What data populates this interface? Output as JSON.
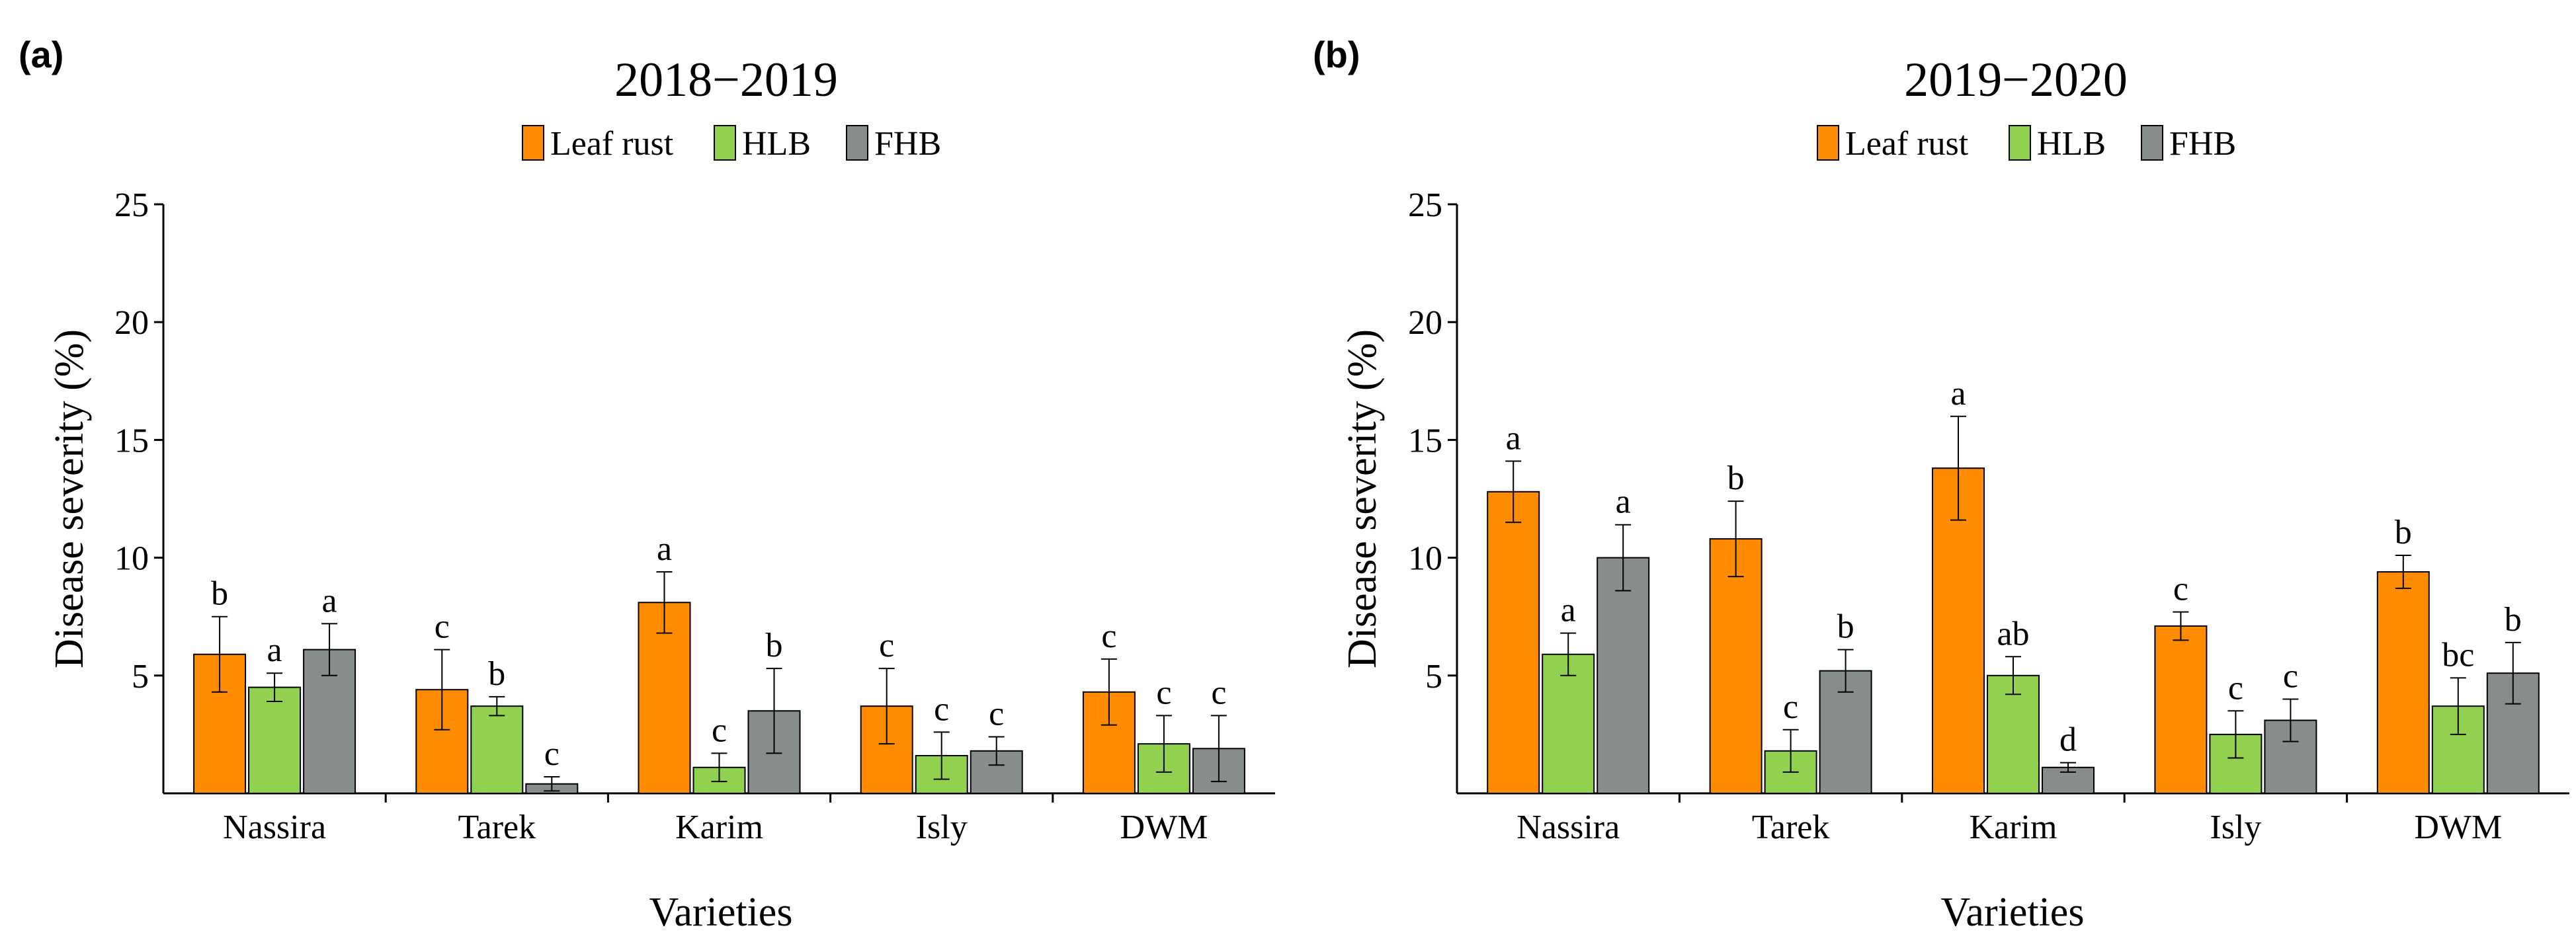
{
  "chart_data": [
    {
      "type": "bar",
      "panel_label": "(a)",
      "title": "2018−2019",
      "xlabel": "Varieties",
      "ylabel": "Disease severity (%)",
      "ylim": [
        0,
        25
      ],
      "yticks": [
        "5",
        "10",
        "15",
        "20",
        "25"
      ],
      "legend_position": "top-center",
      "categories": [
        "Nassira",
        "Tarek",
        "Karim",
        "Isly",
        "DWM"
      ],
      "series": [
        {
          "name": "Leaf rust",
          "color": "#FF8C00",
          "values": [
            5.9,
            4.4,
            8.1,
            3.7,
            4.3
          ],
          "errors": [
            1.6,
            1.7,
            1.3,
            1.6,
            1.4
          ],
          "letters": [
            "b",
            "c",
            "a",
            "c",
            "c"
          ]
        },
        {
          "name": "HLB",
          "color": "#92D050",
          "values": [
            4.5,
            3.7,
            1.1,
            1.6,
            2.1
          ],
          "errors": [
            0.6,
            0.4,
            0.6,
            1.0,
            1.2
          ],
          "letters": [
            "a",
            "b",
            "c",
            "c",
            "c"
          ]
        },
        {
          "name": "FHB",
          "color": "#878C8C",
          "values": [
            6.1,
            0.4,
            3.5,
            1.8,
            1.9
          ],
          "errors": [
            1.1,
            0.3,
            1.8,
            0.6,
            1.4
          ],
          "letters": [
            "a",
            "c",
            "b",
            "c",
            "c"
          ]
        }
      ]
    },
    {
      "type": "bar",
      "panel_label": "(b)",
      "title": "2019−2020",
      "xlabel": "Varieties",
      "ylabel": "Disease severity (%)",
      "ylim": [
        0,
        25
      ],
      "yticks": [
        "5",
        "10",
        "15",
        "20",
        "25"
      ],
      "legend_position": "top-center",
      "categories": [
        "Nassira",
        "Tarek",
        "Karim",
        "Isly",
        "DWM"
      ],
      "series": [
        {
          "name": "Leaf rust",
          "color": "#FF8C00",
          "values": [
            12.8,
            10.8,
            13.8,
            7.1,
            9.4
          ],
          "errors": [
            1.3,
            1.6,
            2.2,
            0.6,
            0.7
          ],
          "letters": [
            "a",
            "b",
            "a",
            "c",
            "b"
          ]
        },
        {
          "name": "HLB",
          "color": "#92D050",
          "values": [
            5.9,
            1.8,
            5.0,
            2.5,
            3.7
          ],
          "errors": [
            0.9,
            0.9,
            0.8,
            1.0,
            1.2
          ],
          "letters": [
            "a",
            "c",
            "ab",
            "c",
            "bc"
          ]
        },
        {
          "name": "FHB",
          "color": "#878C8C",
          "values": [
            10.0,
            5.2,
            1.1,
            3.1,
            5.1
          ],
          "errors": [
            1.4,
            0.9,
            0.2,
            0.9,
            1.3
          ],
          "letters": [
            "a",
            "b",
            "d",
            "c",
            "b"
          ]
        }
      ]
    }
  ]
}
